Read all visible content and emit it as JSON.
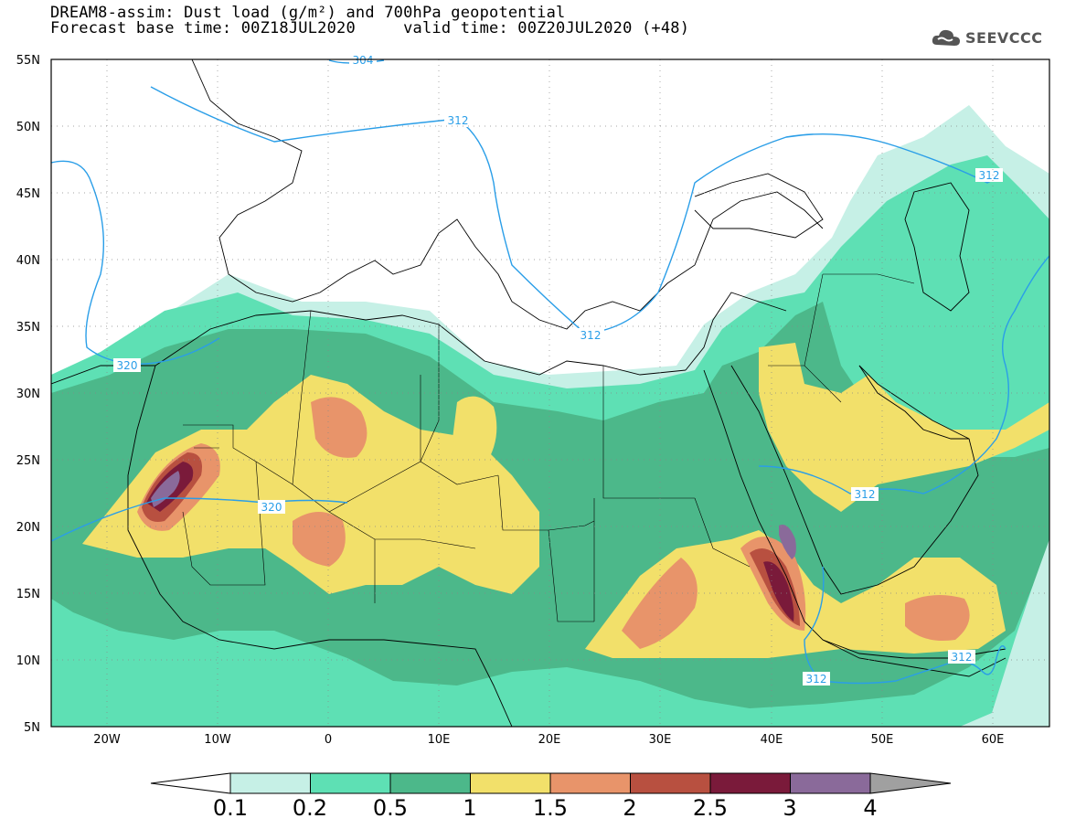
{
  "header": {
    "title": "DREAM8-assim: Dust load (g/m²) and 700hPa geopotential",
    "subtitle": "Forecast base time: 00Z18JUL2020     valid time: 00Z20JUL2020 (+48)",
    "logo_text": "SEEVCCC"
  },
  "map": {
    "lat_labels": [
      "55N",
      "50N",
      "45N",
      "40N",
      "35N",
      "30N",
      "25N",
      "20N",
      "15N",
      "10N",
      "5N"
    ],
    "lon_labels": [
      "20W",
      "10W",
      "0",
      "10E",
      "20E",
      "30E",
      "40E",
      "50E",
      "60E"
    ],
    "contour_labels": [
      "304",
      "312",
      "320",
      "320",
      "312",
      "312",
      "312",
      "312",
      "312"
    ]
  },
  "colorbar": {
    "labels": [
      "0.1",
      "0.2",
      "0.5",
      "1",
      "1.5",
      "2",
      "2.5",
      "3",
      "4"
    ],
    "colors": [
      "#c6f0e6",
      "#5ee0b4",
      "#4cb88a",
      "#f2e06a",
      "#e8946a",
      "#b85040",
      "#7a1a3a",
      "#8a6a9a",
      "#a0a0a0"
    ]
  }
}
